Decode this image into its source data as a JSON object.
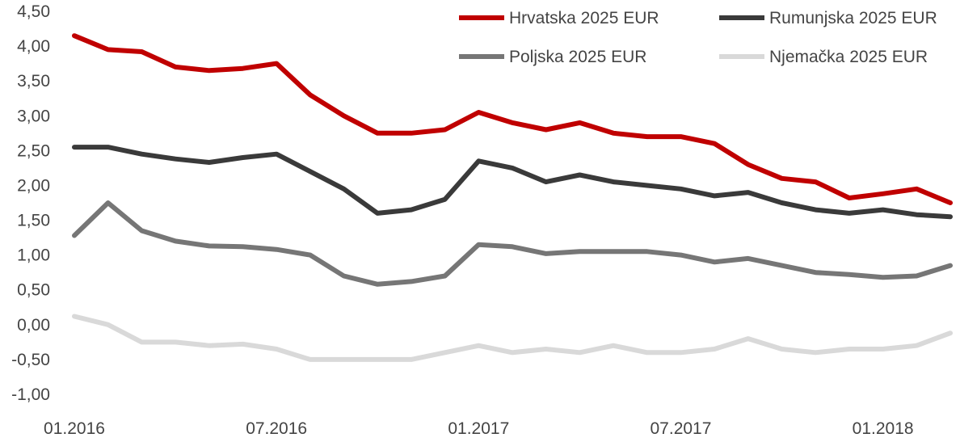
{
  "chart_data": {
    "type": "line",
    "title": "",
    "xlabel": "",
    "ylabel": "",
    "x_ticks": [
      "01.2016",
      "07.2016",
      "01.2017",
      "07.2017",
      "01.2018"
    ],
    "x_range": [
      "2016-01",
      "2018-03"
    ],
    "y_ticks": [
      "4,50",
      "4,00",
      "3,50",
      "3,00",
      "2,50",
      "2,00",
      "1,50",
      "1,00",
      "0,50",
      "0,00",
      "-0,50",
      "-1,00"
    ],
    "ylim": [
      -1.0,
      4.5
    ],
    "grid": false,
    "legend_position": "top",
    "x": [
      "2016-01",
      "2016-02",
      "2016-03",
      "2016-04",
      "2016-05",
      "2016-06",
      "2016-07",
      "2016-08",
      "2016-09",
      "2016-10",
      "2016-11",
      "2016-12",
      "2017-01",
      "2017-02",
      "2017-03",
      "2017-04",
      "2017-05",
      "2017-06",
      "2017-07",
      "2017-08",
      "2017-09",
      "2017-10",
      "2017-11",
      "2017-12",
      "2018-01",
      "2018-02",
      "2018-03"
    ],
    "series": [
      {
        "name": "Hrvatska 2025 EUR",
        "color": "#c00000",
        "values": [
          4.15,
          3.95,
          3.92,
          3.7,
          3.65,
          3.68,
          3.75,
          3.3,
          3.0,
          2.75,
          2.75,
          2.8,
          3.05,
          2.9,
          2.8,
          2.9,
          2.75,
          2.7,
          2.7,
          2.6,
          2.3,
          2.1,
          2.05,
          1.82,
          1.88,
          1.95,
          1.75
        ]
      },
      {
        "name": "Rumunjska 2025 EUR",
        "color": "#3a3a3a",
        "values": [
          2.55,
          2.55,
          2.45,
          2.38,
          2.33,
          2.4,
          2.45,
          2.2,
          1.95,
          1.6,
          1.65,
          1.8,
          2.35,
          2.25,
          2.05,
          2.15,
          2.05,
          2.0,
          1.95,
          1.85,
          1.9,
          1.75,
          1.65,
          1.6,
          1.65,
          1.58,
          1.55
        ]
      },
      {
        "name": "Poljska 2025 EUR",
        "color": "#767676",
        "values": [
          1.28,
          1.75,
          1.35,
          1.2,
          1.13,
          1.12,
          1.08,
          1.0,
          0.7,
          0.58,
          0.62,
          0.7,
          1.15,
          1.12,
          1.02,
          1.05,
          1.05,
          1.05,
          1.0,
          0.9,
          0.95,
          0.85,
          0.75,
          0.72,
          0.68,
          0.7,
          0.85
        ]
      },
      {
        "name": "Njemačka 2025 EUR",
        "color": "#d9d9d9",
        "values": [
          0.12,
          0.0,
          -0.25,
          -0.25,
          -0.3,
          -0.28,
          -0.35,
          -0.5,
          -0.5,
          -0.5,
          -0.5,
          -0.4,
          -0.3,
          -0.4,
          -0.35,
          -0.4,
          -0.3,
          -0.4,
          -0.4,
          -0.35,
          -0.2,
          -0.35,
          -0.4,
          -0.35,
          -0.35,
          -0.3,
          -0.12
        ]
      }
    ]
  }
}
